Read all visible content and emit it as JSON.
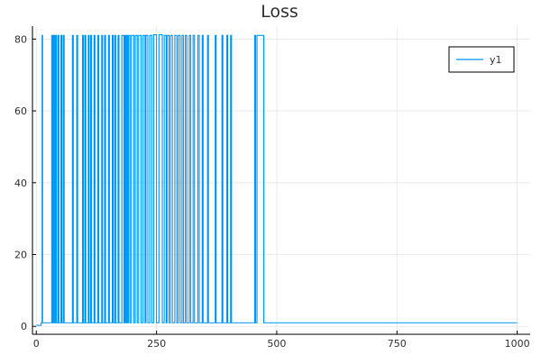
{
  "chart_data": {
    "type": "line",
    "title": "Loss",
    "xlabel": "",
    "ylabel": "",
    "xlim": [
      -8,
      1027
    ],
    "ylim": [
      -2.2,
      83.6
    ],
    "x_ticks": [
      0,
      250,
      500,
      750,
      1000
    ],
    "y_ticks": [
      0,
      20,
      40,
      60,
      80
    ],
    "x_tick_labels": [
      "0",
      "250",
      "500",
      "750",
      "1000"
    ],
    "y_tick_labels": [
      "0",
      "20",
      "40",
      "60",
      "80"
    ],
    "grid": true,
    "legend_position": "top-right",
    "colors": {
      "series": "#009AFA",
      "axis": "#000000",
      "grid": "#E6E6E6",
      "text": "#333333"
    },
    "series": [
      {
        "name": "y1",
        "step": true,
        "points": [
          [
            0,
            0.3
          ],
          [
            10,
            0.3
          ],
          [
            10,
            1
          ],
          [
            12,
            1
          ],
          [
            12,
            81
          ],
          [
            13,
            81
          ],
          [
            13,
            1
          ],
          [
            32,
            1
          ],
          [
            32,
            81
          ],
          [
            34,
            81
          ],
          [
            34,
            1
          ],
          [
            36,
            1
          ],
          [
            36,
            81
          ],
          [
            38,
            81
          ],
          [
            38,
            1
          ],
          [
            40,
            1
          ],
          [
            40,
            81
          ],
          [
            42,
            81
          ],
          [
            42,
            1
          ],
          [
            45,
            1
          ],
          [
            45,
            81
          ],
          [
            47,
            81
          ],
          [
            47,
            1
          ],
          [
            51,
            1
          ],
          [
            51,
            81
          ],
          [
            53,
            81
          ],
          [
            53,
            1
          ],
          [
            56,
            1
          ],
          [
            56,
            81
          ],
          [
            58,
            81
          ],
          [
            58,
            1
          ],
          [
            75,
            1
          ],
          [
            75,
            81
          ],
          [
            77,
            81
          ],
          [
            77,
            1
          ],
          [
            84,
            1
          ],
          [
            84,
            81
          ],
          [
            86,
            81
          ],
          [
            86,
            1
          ],
          [
            96,
            1
          ],
          [
            96,
            81
          ],
          [
            98,
            81
          ],
          [
            98,
            1
          ],
          [
            101,
            1
          ],
          [
            101,
            81
          ],
          [
            103,
            81
          ],
          [
            103,
            1
          ],
          [
            108,
            1
          ],
          [
            108,
            81
          ],
          [
            110,
            81
          ],
          [
            110,
            1
          ],
          [
            113,
            1
          ],
          [
            113,
            81
          ],
          [
            115,
            81
          ],
          [
            115,
            1
          ],
          [
            120,
            1
          ],
          [
            120,
            81
          ],
          [
            122,
            81
          ],
          [
            122,
            1
          ],
          [
            128,
            1
          ],
          [
            128,
            81
          ],
          [
            130,
            81
          ],
          [
            130,
            1
          ],
          [
            136,
            1
          ],
          [
            136,
            81
          ],
          [
            138,
            81
          ],
          [
            138,
            1
          ],
          [
            142,
            1
          ],
          [
            142,
            81
          ],
          [
            144,
            81
          ],
          [
            144,
            1
          ],
          [
            150,
            1
          ],
          [
            150,
            81
          ],
          [
            152,
            81
          ],
          [
            152,
            1
          ],
          [
            158,
            1
          ],
          [
            158,
            81
          ],
          [
            160,
            81
          ],
          [
            160,
            1
          ],
          [
            163,
            1
          ],
          [
            163,
            81
          ],
          [
            165,
            81
          ],
          [
            165,
            1
          ],
          [
            170,
            1
          ],
          [
            170,
            81
          ],
          [
            172,
            81
          ],
          [
            172,
            1
          ],
          [
            178,
            1
          ],
          [
            178,
            81
          ],
          [
            182,
            81
          ],
          [
            182,
            1
          ],
          [
            184,
            1
          ],
          [
            184,
            81
          ],
          [
            186,
            81
          ],
          [
            186,
            1
          ],
          [
            188,
            1
          ],
          [
            188,
            81
          ],
          [
            190,
            81
          ],
          [
            190,
            1
          ],
          [
            192,
            1
          ],
          [
            192,
            81
          ],
          [
            195,
            81
          ],
          [
            195,
            1
          ],
          [
            198,
            1
          ],
          [
            198,
            81
          ],
          [
            203,
            81
          ],
          [
            203,
            1
          ],
          [
            206,
            1
          ],
          [
            206,
            81
          ],
          [
            210,
            81
          ],
          [
            210,
            1
          ],
          [
            213,
            1
          ],
          [
            213,
            81
          ],
          [
            218,
            81
          ],
          [
            218,
            1
          ],
          [
            222,
            1
          ],
          [
            222,
            81
          ],
          [
            226,
            81
          ],
          [
            226,
            1
          ],
          [
            228,
            1
          ],
          [
            228,
            81
          ],
          [
            232,
            81
          ],
          [
            232,
            1
          ],
          [
            236,
            1
          ],
          [
            236,
            81
          ],
          [
            240,
            81
          ],
          [
            240,
            1
          ],
          [
            244,
            1
          ],
          [
            244,
            81.2
          ],
          [
            250,
            81.2
          ],
          [
            250,
            1
          ],
          [
            255,
            1
          ],
          [
            255,
            81.2
          ],
          [
            262,
            81.2
          ],
          [
            262,
            1
          ],
          [
            266,
            1
          ],
          [
            266,
            81
          ],
          [
            270,
            81
          ],
          [
            270,
            1
          ],
          [
            272,
            1
          ],
          [
            272,
            81
          ],
          [
            276,
            81
          ],
          [
            276,
            1
          ],
          [
            279,
            1
          ],
          [
            279,
            81
          ],
          [
            283,
            81
          ],
          [
            283,
            1
          ],
          [
            288,
            1
          ],
          [
            288,
            81
          ],
          [
            292,
            81
          ],
          [
            292,
            1
          ],
          [
            295,
            1
          ],
          [
            295,
            81
          ],
          [
            299,
            81
          ],
          [
            299,
            1
          ],
          [
            303,
            1
          ],
          [
            303,
            81
          ],
          [
            306,
            81
          ],
          [
            306,
            1
          ],
          [
            310,
            1
          ],
          [
            310,
            81
          ],
          [
            313,
            81
          ],
          [
            313,
            1
          ],
          [
            318,
            1
          ],
          [
            318,
            81
          ],
          [
            321,
            81
          ],
          [
            321,
            1
          ],
          [
            326,
            1
          ],
          [
            326,
            81
          ],
          [
            329,
            81
          ],
          [
            329,
            1
          ],
          [
            336,
            1
          ],
          [
            336,
            81
          ],
          [
            339,
            81
          ],
          [
            339,
            1
          ],
          [
            345,
            1
          ],
          [
            345,
            81
          ],
          [
            347,
            81
          ],
          [
            347,
            1
          ],
          [
            356,
            1
          ],
          [
            356,
            81
          ],
          [
            358,
            81
          ],
          [
            358,
            1
          ],
          [
            372,
            1
          ],
          [
            372,
            81
          ],
          [
            374,
            81
          ],
          [
            374,
            1
          ],
          [
            386,
            1
          ],
          [
            386,
            81
          ],
          [
            388,
            81
          ],
          [
            388,
            1
          ],
          [
            396,
            1
          ],
          [
            396,
            81
          ],
          [
            398,
            81
          ],
          [
            398,
            1
          ],
          [
            404,
            1
          ],
          [
            404,
            81
          ],
          [
            406,
            81
          ],
          [
            406,
            1
          ],
          [
            454,
            1
          ],
          [
            454,
            81
          ],
          [
            456,
            81
          ],
          [
            456,
            1
          ],
          [
            459,
            1
          ],
          [
            459,
            81
          ],
          [
            473,
            81
          ],
          [
            473,
            1
          ],
          [
            1000,
            1
          ]
        ]
      }
    ]
  }
}
